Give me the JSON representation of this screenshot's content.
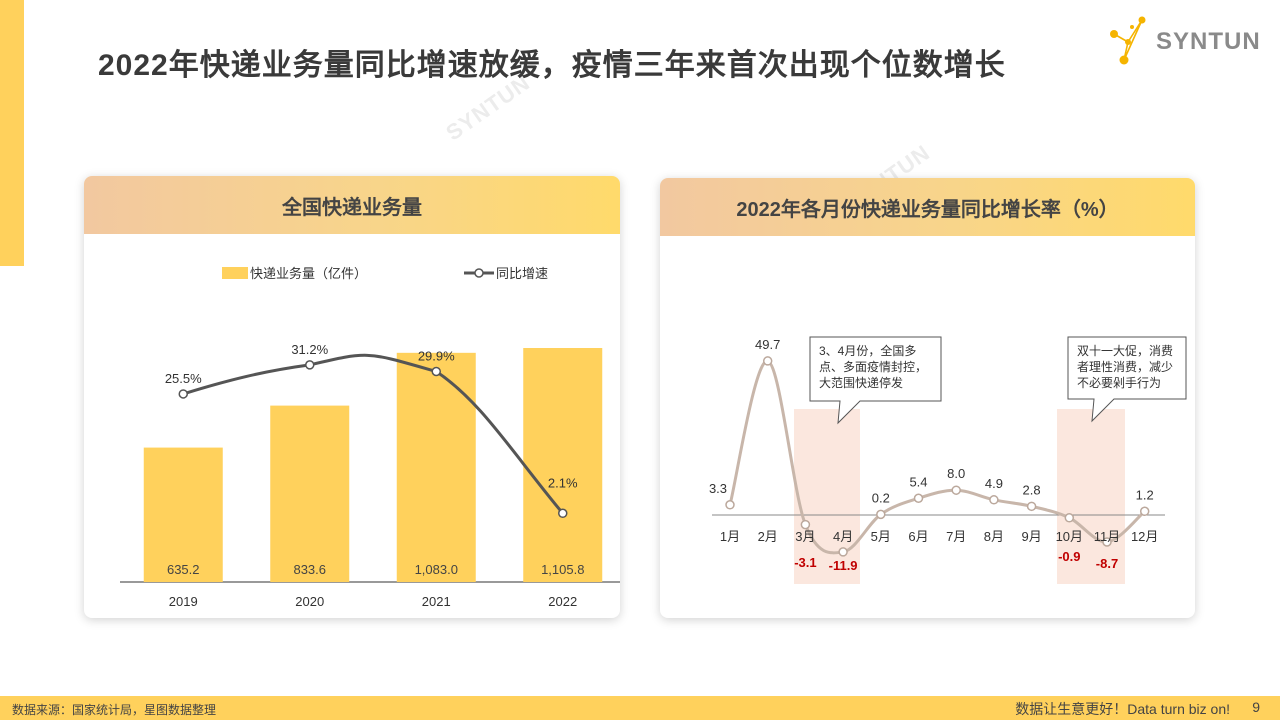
{
  "header": {
    "title": "2022年快递业务量同比增速放缓，疫情三年来首次出现个位数增长",
    "logo_text": "SYNTUN",
    "watermark_text": "SYNTUN",
    "accent_color": "#FFD15C"
  },
  "left_chart": {
    "card_title": "全国快递业务量",
    "legend_bar": "快递业务量（亿件）",
    "legend_line": "同比增速"
  },
  "right_chart": {
    "card_title": "2022年各月份快递业务量同比增长率（%）",
    "annotations": [
      {
        "lines": [
          "3、4月份，全国多",
          "点、多面疫情封控，",
          "大范围快递停发"
        ]
      },
      {
        "lines": [
          "双十一大促，消费",
          "者理性消费，减少",
          "不必要剁手行为"
        ]
      }
    ]
  },
  "chart_data": [
    {
      "type": "bar",
      "title": "全国快递业务量",
      "categories": [
        "2019",
        "2020",
        "2021",
        "2022"
      ],
      "series": [
        {
          "name": "快递业务量（亿件）",
          "type": "bar",
          "values": [
            635.2,
            833.6,
            1083.0,
            1105.8
          ],
          "labels": [
            "635.2",
            "833.6",
            "1,083.0",
            "1,105.8"
          ],
          "color": "#FFD15C"
        },
        {
          "name": "同比增速",
          "type": "line",
          "values": [
            25.5,
            31.2,
            29.9,
            2.1
          ],
          "labels": [
            "25.5%",
            "31.2%",
            "29.9%",
            "2.1%"
          ],
          "color": "#555555"
        }
      ],
      "legend": "top"
    },
    {
      "type": "line",
      "title": "2022年各月份快递业务量同比增长率（%）",
      "categories": [
        "1月",
        "2月",
        "3月",
        "4月",
        "5月",
        "6月",
        "7月",
        "8月",
        "9月",
        "10月",
        "11月",
        "12月"
      ],
      "values": [
        3.3,
        49.7,
        -3.1,
        -11.9,
        0.2,
        5.4,
        8.0,
        4.9,
        2.8,
        -0.9,
        -8.7,
        1.2
      ],
      "labels": [
        "3.3",
        "49.7",
        "-3.1",
        "-11.9",
        "0.2",
        "5.4",
        "8.0",
        "4.9",
        "2.8",
        "-0.9",
        "-8.7",
        "1.2"
      ],
      "negative_color": "#C00000",
      "line_color": "#C8B6AA",
      "highlight_months": [
        [
          "3月",
          "4月"
        ],
        [
          "10月",
          "11月"
        ]
      ]
    }
  ],
  "footer": {
    "source": "数据来源：国家统计局，星图数据整理",
    "slogan": "数据让生意更好！Data turn biz on!",
    "page_number": "9"
  }
}
